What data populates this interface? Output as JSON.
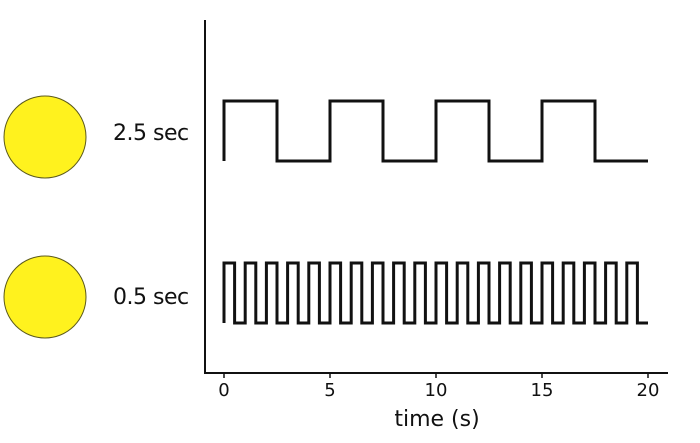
{
  "colors": {
    "lamp_fill": "#fff21e",
    "ink": "#111111"
  },
  "rows": [
    {
      "label": "2.5 sec",
      "half_period_s": 2.5
    },
    {
      "label": "0.5 sec",
      "half_period_s": 0.5
    }
  ],
  "chart_data": {
    "type": "line",
    "xlabel": "time (s)",
    "xlim": [
      0,
      20
    ],
    "x_ticks": [
      0,
      5,
      10,
      15,
      20
    ],
    "x_tick_labels": [
      "0",
      "5",
      "10",
      "15",
      "20"
    ],
    "series": [
      {
        "label_ref": "rows.0.label",
        "waveform": "square",
        "half_period": 2.5,
        "start": 0,
        "end": 20,
        "starts_high": true
      },
      {
        "label_ref": "rows.1.label",
        "waveform": "square",
        "half_period": 0.5,
        "start": 0,
        "end": 20,
        "starts_high": true
      }
    ]
  }
}
